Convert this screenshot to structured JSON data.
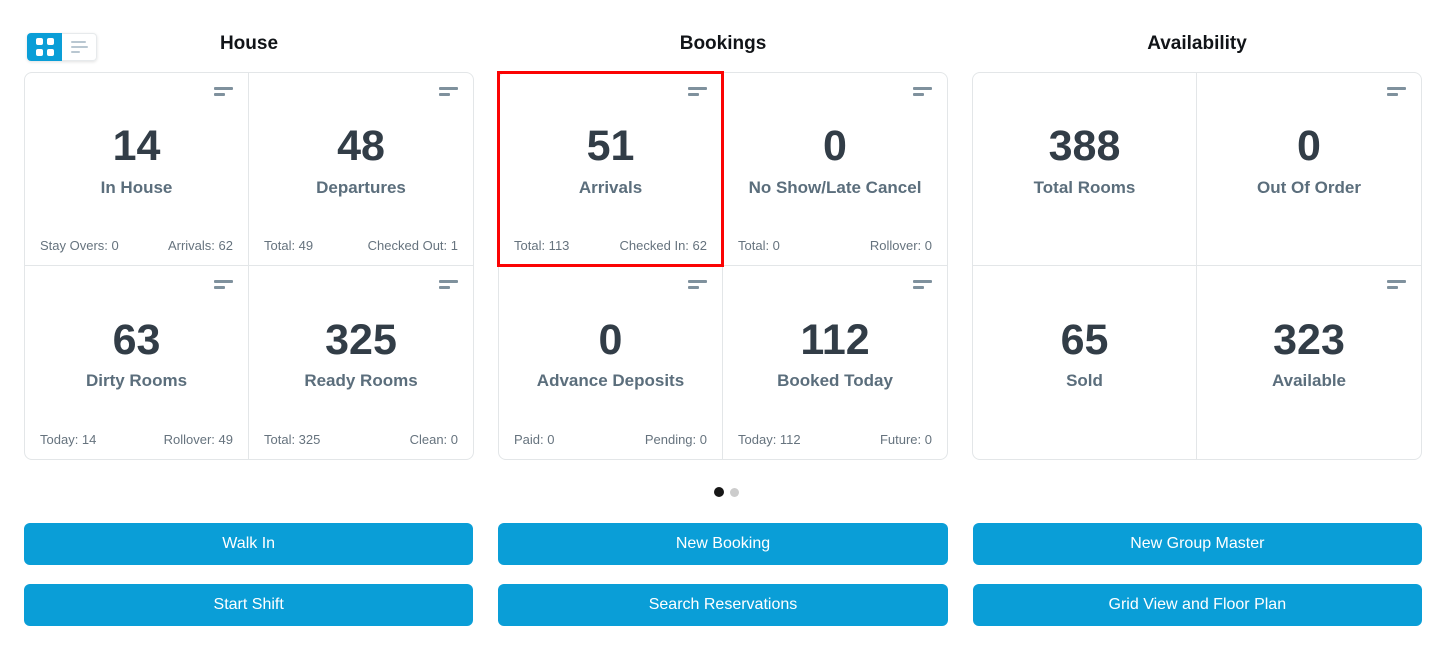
{
  "view_toggle": {
    "grid_icon": "grid-view-icon",
    "list_icon": "list-view-icon",
    "active": "grid"
  },
  "sections": [
    {
      "title": "House",
      "cards": [
        {
          "value": "14",
          "label": "In House",
          "footer_left": "Stay Overs: 0",
          "footer_right": "Arrivals: 62"
        },
        {
          "value": "48",
          "label": "Departures",
          "footer_left": "Total: 49",
          "footer_right": "Checked Out: 1"
        },
        {
          "value": "63",
          "label": "Dirty Rooms",
          "footer_left": "Today: 14",
          "footer_right": "Rollover: 49"
        },
        {
          "value": "325",
          "label": "Ready Rooms",
          "footer_left": "Total: 325",
          "footer_right": "Clean: 0"
        }
      ]
    },
    {
      "title": "Bookings",
      "cards": [
        {
          "value": "51",
          "label": "Arrivals",
          "footer_left": "Total: 113",
          "footer_right": "Checked In: 62",
          "highlighted": true
        },
        {
          "value": "0",
          "label": "No Show/Late Cancel",
          "footer_left": "Total: 0",
          "footer_right": "Rollover: 0"
        },
        {
          "value": "0",
          "label": "Advance Deposits",
          "footer_left": "Paid: 0",
          "footer_right": "Pending: 0"
        },
        {
          "value": "112",
          "label": "Booked Today",
          "footer_left": "Today: 112",
          "footer_right": "Future: 0"
        }
      ]
    },
    {
      "title": "Availability",
      "cards": [
        {
          "value": "388",
          "label": "Total Rooms"
        },
        {
          "value": "0",
          "label": "Out Of Order"
        },
        {
          "value": "65",
          "label": "Sold"
        },
        {
          "value": "323",
          "label": "Available"
        }
      ]
    }
  ],
  "pagination": {
    "total_pages": 2,
    "active_page": 1
  },
  "actions": {
    "walk_in": "Walk In",
    "start_shift": "Start Shift",
    "new_booking": "New Booking",
    "search_reservations": "Search Reservations",
    "new_group_master": "New Group Master",
    "grid_view_floor_plan": "Grid View and Floor Plan"
  },
  "icons": {
    "card_menu": "stat-options-icon",
    "grid_toggle": "grid-view-icon",
    "list_toggle": "list-view-icon"
  },
  "colors": {
    "accent_blue": "#0a9ed7",
    "highlight_red": "#fb0303",
    "number_dark": "#323d47",
    "label_gray": "#5b6e7c",
    "footer_gray": "#66737e",
    "divider_gray": "#e3e6e8"
  }
}
